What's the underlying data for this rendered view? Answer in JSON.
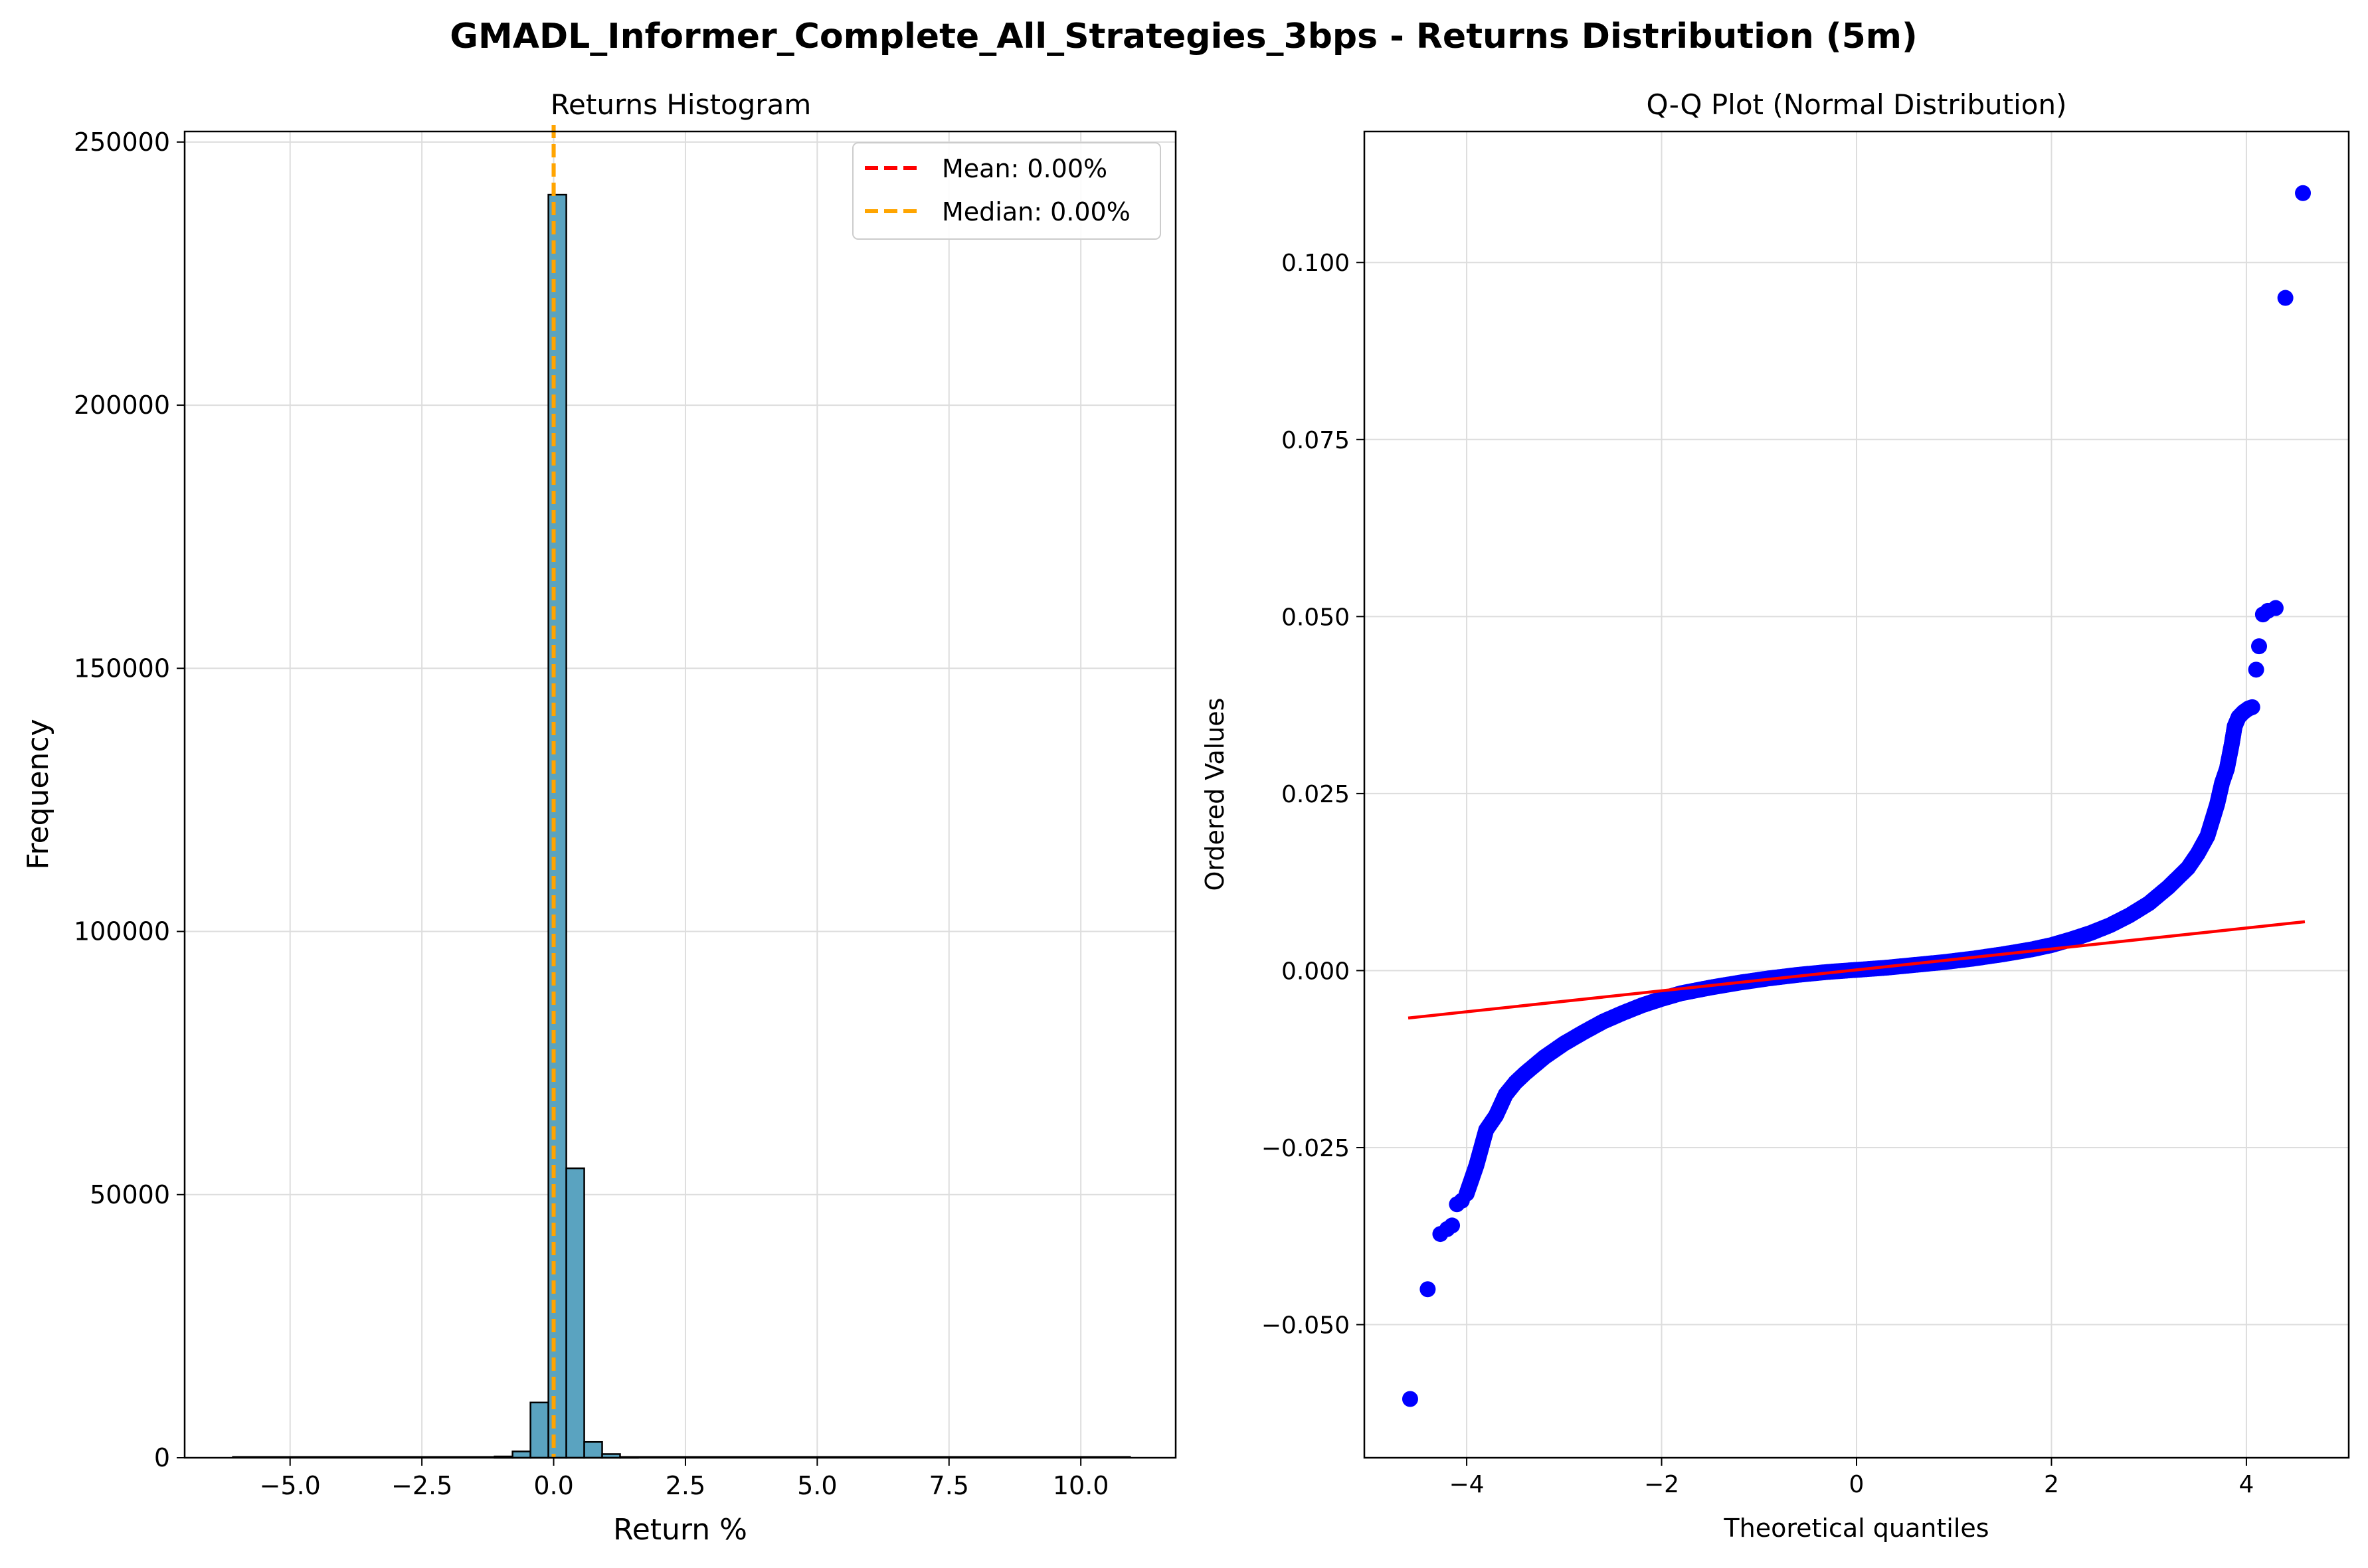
{
  "figure_title": "GMADL_Informer_Complete_All_Strategies_3bps - Returns Distribution (5m)",
  "colors": {
    "bar_fill": "#5aa3c0",
    "bar_edge": "#000000",
    "mean_line": "#ff0000",
    "median_line": "#ffa500",
    "qq_points": "#0000ff",
    "qq_line": "#ff0000",
    "grid": "#dddddd"
  },
  "chart_data": [
    {
      "type": "bar",
      "title": "Returns Histogram",
      "xlabel": "Return %",
      "ylabel": "Frequency",
      "xlim": [
        -7.0,
        11.8
      ],
      "ylim": [
        0,
        252000
      ],
      "xticks": [
        -5.0,
        -2.5,
        0.0,
        2.5,
        5.0,
        7.5,
        10.0
      ],
      "xtick_labels": [
        "−5.0",
        "−2.5",
        "0.0",
        "2.5",
        "5.0",
        "7.5",
        "10.0"
      ],
      "yticks": [
        0,
        50000,
        100000,
        150000,
        200000,
        250000
      ],
      "ytick_labels": [
        "0",
        "50000",
        "100000",
        "150000",
        "200000",
        "250000"
      ],
      "grid": true,
      "bin_edges_range": [
        -6.1,
        10.95
      ],
      "bin_count": 50,
      "bins": [
        {
          "x0": -0.76,
          "x1": -0.42,
          "count": 250
        },
        {
          "x0": -0.42,
          "x1": -0.08,
          "count": 1200
        },
        {
          "x0": -0.08,
          "x1": 0.26,
          "count": 10500
        },
        {
          "x0": 0.26,
          "x1": 0.6,
          "count": 240000
        },
        {
          "x0": 0.6,
          "x1": 0.94,
          "count": 55000
        },
        {
          "x0": 0.94,
          "x1": 1.28,
          "count": 3000
        },
        {
          "x0": 1.28,
          "x1": 1.62,
          "count": 700
        },
        {
          "x0": 1.62,
          "x1": 1.96,
          "count": 150
        }
      ],
      "bins_note_x_shift": -0.36,
      "mean": 0.0,
      "median": 0.0,
      "legend": {
        "placement": "top-right",
        "entries": [
          {
            "label": "Mean: 0.00%",
            "color": "#ff0000",
            "style": "dashed"
          },
          {
            "label": "Median: 0.00%",
            "color": "#ffa500",
            "style": "dashed"
          }
        ]
      }
    },
    {
      "type": "scatter",
      "title": "Q-Q Plot (Normal Distribution)",
      "xlabel": "Theoretical quantiles",
      "ylabel": "Ordered Values",
      "xlim": [
        -5.05,
        5.05
      ],
      "ylim": [
        -0.0688,
        0.1185
      ],
      "xticks": [
        -4,
        -2,
        0,
        2,
        4
      ],
      "xtick_labels": [
        "−4",
        "−2",
        "0",
        "2",
        "4"
      ],
      "yticks": [
        -0.05,
        -0.025,
        0.0,
        0.025,
        0.05,
        0.075,
        0.1
      ],
      "ytick_labels": [
        "−0.050",
        "−0.025",
        "0.000",
        "0.025",
        "0.050",
        "0.075",
        "0.100"
      ],
      "grid": true,
      "fit_line": {
        "x": [
          -4.6,
          4.6
        ],
        "y": [
          -0.0067,
          0.0069
        ]
      },
      "outliers": [
        {
          "x": -4.58,
          "y": -0.0605
        },
        {
          "x": -4.4,
          "y": -0.045
        },
        {
          "x": -4.27,
          "y": -0.0372
        },
        {
          "x": -4.2,
          "y": -0.0365
        },
        {
          "x": -4.15,
          "y": -0.036
        },
        {
          "x": -4.1,
          "y": -0.033
        },
        {
          "x": -4.05,
          "y": -0.0325
        },
        {
          "x": 4.1,
          "y": 0.0425
        },
        {
          "x": 4.13,
          "y": 0.0458
        },
        {
          "x": 4.17,
          "y": 0.0503
        },
        {
          "x": 4.22,
          "y": 0.0508
        },
        {
          "x": 4.3,
          "y": 0.0512
        },
        {
          "x": 4.4,
          "y": 0.095
        },
        {
          "x": 4.58,
          "y": 0.1098
        }
      ],
      "curve_points": [
        {
          "x": -4.0,
          "y": -0.0315
        },
        {
          "x": -3.9,
          "y": -0.0275
        },
        {
          "x": -3.8,
          "y": -0.0225
        },
        {
          "x": -3.7,
          "y": -0.0205
        },
        {
          "x": -3.6,
          "y": -0.0175
        },
        {
          "x": -3.5,
          "y": -0.0158
        },
        {
          "x": -3.4,
          "y": -0.0145
        },
        {
          "x": -3.2,
          "y": -0.0122
        },
        {
          "x": -3.0,
          "y": -0.0103
        },
        {
          "x": -2.8,
          "y": -0.0087
        },
        {
          "x": -2.6,
          "y": -0.0072
        },
        {
          "x": -2.4,
          "y": -0.006
        },
        {
          "x": -2.2,
          "y": -0.0049
        },
        {
          "x": -2.0,
          "y": -0.004
        },
        {
          "x": -1.8,
          "y": -0.0032
        },
        {
          "x": -1.5,
          "y": -0.0024
        },
        {
          "x": -1.2,
          "y": -0.0017
        },
        {
          "x": -0.9,
          "y": -0.0011
        },
        {
          "x": -0.6,
          "y": -0.0006
        },
        {
          "x": -0.3,
          "y": -0.0002
        },
        {
          "x": 0.0,
          "y": 0.0001
        },
        {
          "x": 0.3,
          "y": 0.0004
        },
        {
          "x": 0.6,
          "y": 0.0008
        },
        {
          "x": 0.9,
          "y": 0.0012
        },
        {
          "x": 1.2,
          "y": 0.0017
        },
        {
          "x": 1.5,
          "y": 0.0023
        },
        {
          "x": 1.8,
          "y": 0.003
        },
        {
          "x": 2.0,
          "y": 0.0036
        },
        {
          "x": 2.2,
          "y": 0.0044
        },
        {
          "x": 2.4,
          "y": 0.0053
        },
        {
          "x": 2.6,
          "y": 0.0064
        },
        {
          "x": 2.8,
          "y": 0.0078
        },
        {
          "x": 3.0,
          "y": 0.0095
        },
        {
          "x": 3.2,
          "y": 0.0118
        },
        {
          "x": 3.4,
          "y": 0.0145
        },
        {
          "x": 3.5,
          "y": 0.0165
        },
        {
          "x": 3.6,
          "y": 0.019
        },
        {
          "x": 3.7,
          "y": 0.0235
        },
        {
          "x": 3.75,
          "y": 0.0265
        },
        {
          "x": 3.8,
          "y": 0.0285
        },
        {
          "x": 3.85,
          "y": 0.032
        },
        {
          "x": 3.88,
          "y": 0.0345
        },
        {
          "x": 3.92,
          "y": 0.0358
        },
        {
          "x": 3.97,
          "y": 0.0365
        },
        {
          "x": 4.02,
          "y": 0.037
        },
        {
          "x": 4.06,
          "y": 0.0372
        }
      ]
    }
  ]
}
